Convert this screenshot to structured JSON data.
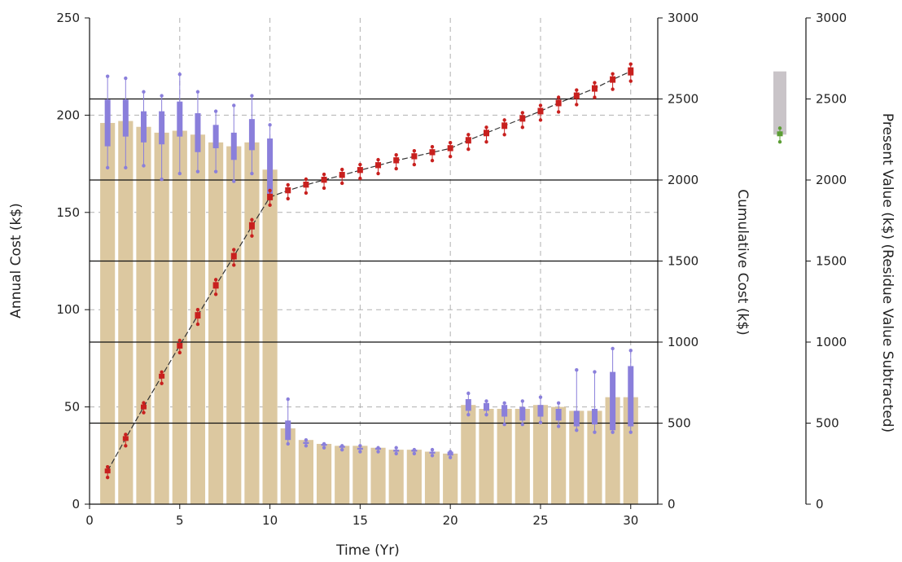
{
  "chart_data": {
    "type": "bar",
    "xlabel": "Time (Yr)",
    "ylabel_left": "Annual Cost (k$)",
    "ylabel_right": "Cumulative Cost (k$)",
    "ylabel_far_right": "Present Value (k$) (Residue Value Subtracted)",
    "xlim": [
      0,
      31.5
    ],
    "ylim_left": [
      0,
      250
    ],
    "ylim_right": [
      0,
      3000
    ],
    "ylim_far_right": [
      0,
      3000
    ],
    "x_ticks": [
      "0",
      "5",
      "10",
      "15",
      "20",
      "25",
      "30"
    ],
    "y_left_ticks": [
      "0",
      "50",
      "100",
      "150",
      "200",
      "250"
    ],
    "y_right_ticks": [
      "0",
      "500",
      "1000",
      "1500",
      "2000",
      "2500",
      "3000"
    ],
    "y_far_right_ticks": [
      "0",
      "500",
      "1000",
      "1500",
      "2000",
      "2500",
      "3000"
    ],
    "x": [
      1,
      2,
      3,
      4,
      5,
      6,
      7,
      8,
      9,
      10,
      11,
      12,
      13,
      14,
      15,
      16,
      17,
      18,
      19,
      20,
      21,
      22,
      23,
      24,
      25,
      26,
      27,
      28,
      29,
      30
    ],
    "annual_cost_bars": [
      196,
      197,
      194,
      191,
      192,
      190,
      186,
      184,
      186,
      172,
      39,
      33,
      31,
      30,
      30,
      29,
      28,
      28,
      27,
      26,
      51,
      49,
      49,
      49,
      51,
      50,
      48,
      48,
      55,
      55
    ],
    "annual_cost_box": [
      {
        "x": 1,
        "q1": 184,
        "q3": 208,
        "min": 173,
        "max": 220
      },
      {
        "x": 2,
        "q1": 189,
        "q3": 208,
        "min": 173,
        "max": 219
      },
      {
        "x": 3,
        "q1": 186,
        "q3": 202,
        "min": 174,
        "max": 212
      },
      {
        "x": 4,
        "q1": 185,
        "q3": 202,
        "min": 167,
        "max": 210
      },
      {
        "x": 5,
        "q1": 189,
        "q3": 207,
        "min": 170,
        "max": 221
      },
      {
        "x": 6,
        "q1": 181,
        "q3": 201,
        "min": 171,
        "max": 212
      },
      {
        "x": 7,
        "q1": 183,
        "q3": 195,
        "min": 171,
        "max": 202
      },
      {
        "x": 8,
        "q1": 177,
        "q3": 191,
        "min": 166,
        "max": 205
      },
      {
        "x": 9,
        "q1": 182,
        "q3": 198,
        "min": 170,
        "max": 210
      },
      {
        "x": 10,
        "q1": 159,
        "q3": 188,
        "min": 157,
        "max": 195
      },
      {
        "x": 11,
        "q1": 33,
        "q3": 43,
        "min": 31,
        "max": 54
      },
      {
        "x": 12,
        "q1": 31,
        "q3": 32,
        "min": 30,
        "max": 33
      },
      {
        "x": 13,
        "q1": 30,
        "q3": 31,
        "min": 29,
        "max": 31
      },
      {
        "x": 14,
        "q1": 29,
        "q3": 30,
        "min": 28,
        "max": 30
      },
      {
        "x": 15,
        "q1": 28,
        "q3": 29,
        "min": 27,
        "max": 30
      },
      {
        "x": 16,
        "q1": 28,
        "q3": 29,
        "min": 27,
        "max": 29
      },
      {
        "x": 17,
        "q1": 27,
        "q3": 28,
        "min": 26,
        "max": 29
      },
      {
        "x": 18,
        "q1": 27,
        "q3": 28,
        "min": 26,
        "max": 28
      },
      {
        "x": 19,
        "q1": 26,
        "q3": 27,
        "min": 25,
        "max": 28
      },
      {
        "x": 20,
        "q1": 25,
        "q3": 27,
        "min": 24,
        "max": 27
      },
      {
        "x": 21,
        "q1": 48,
        "q3": 54,
        "min": 46,
        "max": 57
      },
      {
        "x": 22,
        "q1": 48,
        "q3": 52,
        "min": 46,
        "max": 53
      },
      {
        "x": 23,
        "q1": 45,
        "q3": 51,
        "min": 41,
        "max": 52
      },
      {
        "x": 24,
        "q1": 43,
        "q3": 50,
        "min": 41,
        "max": 53
      },
      {
        "x": 25,
        "q1": 45,
        "q3": 51,
        "min": 42,
        "max": 55
      },
      {
        "x": 26,
        "q1": 43,
        "q3": 49,
        "min": 40,
        "max": 52
      },
      {
        "x": 27,
        "q1": 40,
        "q3": 48,
        "min": 38,
        "max": 69
      },
      {
        "x": 28,
        "q1": 41,
        "q3": 49,
        "min": 37,
        "max": 68
      },
      {
        "x": 29,
        "q1": 38,
        "q3": 68,
        "min": 37,
        "max": 80
      },
      {
        "x": 30,
        "q1": 40,
        "q3": 71,
        "min": 37,
        "max": 79
      }
    ],
    "cumulative_cost_line": [
      205,
      405,
      600,
      790,
      980,
      1165,
      1350,
      1530,
      1715,
      1895,
      1935,
      1970,
      2000,
      2030,
      2060,
      2090,
      2120,
      2145,
      2170,
      2195,
      2245,
      2290,
      2335,
      2380,
      2425,
      2475,
      2520,
      2565,
      2620,
      2670
    ],
    "cumulative_cost_box": [
      {
        "x": 1,
        "q1": 190,
        "q3": 220,
        "min": 165,
        "max": 230
      },
      {
        "x": 2,
        "q1": 390,
        "q3": 420,
        "min": 360,
        "max": 430
      },
      {
        "x": 3,
        "q1": 585,
        "q3": 615,
        "min": 565,
        "max": 625
      },
      {
        "x": 4,
        "q1": 775,
        "q3": 805,
        "min": 745,
        "max": 815
      },
      {
        "x": 5,
        "q1": 960,
        "q3": 995,
        "min": 935,
        "max": 1010
      },
      {
        "x": 6,
        "q1": 1145,
        "q3": 1185,
        "min": 1110,
        "max": 1200
      },
      {
        "x": 7,
        "q1": 1330,
        "q3": 1370,
        "min": 1295,
        "max": 1385
      },
      {
        "x": 8,
        "q1": 1510,
        "q3": 1550,
        "min": 1475,
        "max": 1570
      },
      {
        "x": 9,
        "q1": 1695,
        "q3": 1740,
        "min": 1655,
        "max": 1755
      },
      {
        "x": 10,
        "q1": 1875,
        "q3": 1915,
        "min": 1845,
        "max": 1935
      },
      {
        "x": 11,
        "q1": 1918,
        "q3": 1955,
        "min": 1885,
        "max": 1970
      },
      {
        "x": 12,
        "q1": 1953,
        "q3": 1990,
        "min": 1920,
        "max": 2005
      },
      {
        "x": 13,
        "q1": 1983,
        "q3": 2020,
        "min": 1950,
        "max": 2035
      },
      {
        "x": 14,
        "q1": 2013,
        "q3": 2050,
        "min": 1980,
        "max": 2065
      },
      {
        "x": 15,
        "q1": 2043,
        "q3": 2080,
        "min": 2010,
        "max": 2095
      },
      {
        "x": 16,
        "q1": 2073,
        "q3": 2110,
        "min": 2040,
        "max": 2125
      },
      {
        "x": 17,
        "q1": 2103,
        "q3": 2140,
        "min": 2070,
        "max": 2155
      },
      {
        "x": 18,
        "q1": 2128,
        "q3": 2165,
        "min": 2095,
        "max": 2180
      },
      {
        "x": 19,
        "q1": 2153,
        "q3": 2190,
        "min": 2120,
        "max": 2205
      },
      {
        "x": 20,
        "q1": 2178,
        "q3": 2215,
        "min": 2145,
        "max": 2230
      },
      {
        "x": 21,
        "q1": 2225,
        "q3": 2265,
        "min": 2190,
        "max": 2280
      },
      {
        "x": 22,
        "q1": 2270,
        "q3": 2310,
        "min": 2235,
        "max": 2325
      },
      {
        "x": 23,
        "q1": 2315,
        "q3": 2355,
        "min": 2280,
        "max": 2370
      },
      {
        "x": 24,
        "q1": 2360,
        "q3": 2400,
        "min": 2325,
        "max": 2415
      },
      {
        "x": 25,
        "q1": 2405,
        "q3": 2445,
        "min": 2370,
        "max": 2460
      },
      {
        "x": 26,
        "q1": 2455,
        "q3": 2495,
        "min": 2420,
        "max": 2510
      },
      {
        "x": 27,
        "q1": 2500,
        "q3": 2540,
        "min": 2465,
        "max": 2555
      },
      {
        "x": 28,
        "q1": 2545,
        "q3": 2585,
        "min": 2510,
        "max": 2600
      },
      {
        "x": 29,
        "q1": 2600,
        "q3": 2640,
        "min": 2560,
        "max": 2655
      },
      {
        "x": 30,
        "q1": 2645,
        "q3": 2695,
        "min": 2610,
        "max": 2715
      }
    ],
    "present_value": {
      "bar_range": [
        2280,
        2670
      ],
      "box": {
        "q1": 2270,
        "q3": 2300,
        "min": 2235,
        "max": 2320
      }
    },
    "colors": {
      "bars": "#dcc8a0",
      "annual_box": "#8a7fdb",
      "cumulative_box": "#c8201e",
      "cumulative_line": "#333333",
      "pv_bar": "#c9c4c8",
      "pv_box": "#5c9e35",
      "solid_grid": "#111111",
      "dashed_grid": "#b0b0b0"
    },
    "grid": {
      "solid_horizontal_at_right_axis": [
        500,
        1000,
        1500,
        2000,
        2500
      ],
      "dashed_horizontal_at_left_axis": [
        50,
        100,
        150,
        200
      ],
      "dashed_vertical_at_x": [
        5,
        10,
        15,
        20,
        25,
        30
      ]
    }
  }
}
